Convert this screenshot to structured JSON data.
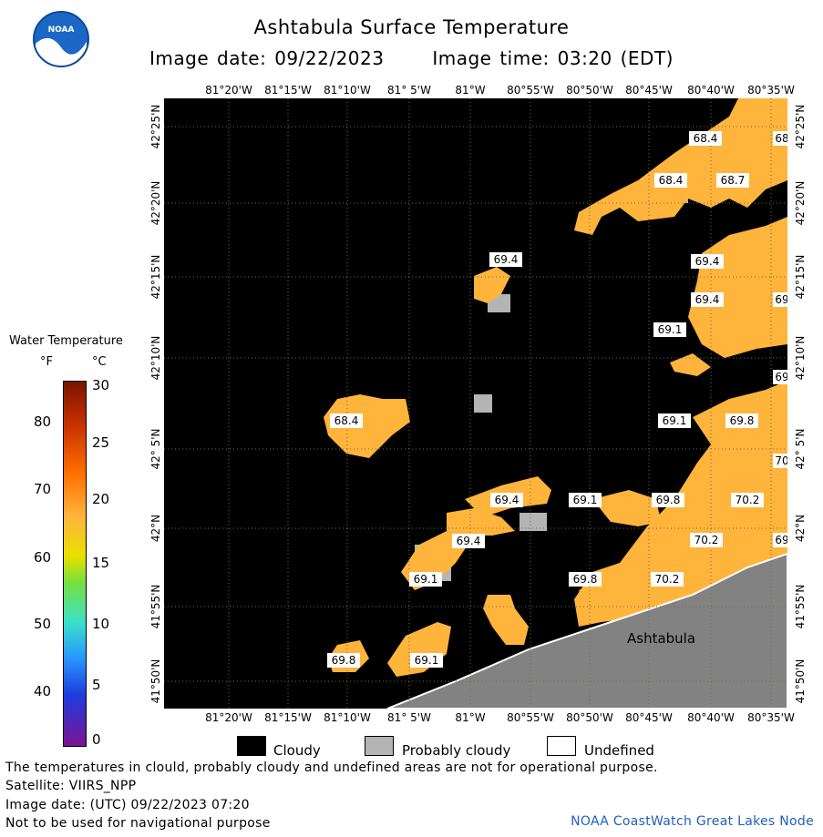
{
  "header": {
    "title": "Ashtabula Surface Temperature",
    "image_date": "Image date: 09/22/2023",
    "image_time": "Image time: 03:20 (EDT)"
  },
  "logo": {
    "icon": "noaa-logo",
    "text": "NOAA"
  },
  "legend": {
    "title": "Water Temperature",
    "unit_f": "°F",
    "unit_c": "°C",
    "f_ticks": [
      "80",
      "70",
      "60",
      "50",
      "40"
    ],
    "c_ticks": [
      "30",
      "25",
      "20",
      "15",
      "10",
      "5",
      "0"
    ]
  },
  "map": {
    "lon_labels_top": [
      "81°20'W",
      "81°15'W",
      "81°10'W",
      "81° 5'W",
      "81°W",
      "80°55'W",
      "80°50'W",
      "80°45'W",
      "80°40'W",
      "80°35'W"
    ],
    "lon_labels_bottom": [
      "81°20'W",
      "81°15'W",
      "81°10'W",
      "81° 5'W",
      "81°W",
      "80°55'W",
      "80°50'W",
      "80°45'W",
      "80°40'W",
      "80°35'W"
    ],
    "lat_labels": [
      "42°25'N",
      "42°20'N",
      "42°15'N",
      "42°10'N",
      "42° 5'N",
      "42°N",
      "41°55'N",
      "41°50'N"
    ],
    "place_label": "Ashtabula",
    "temperature_labels": [
      "68.4",
      "68.4",
      "68",
      "68.7",
      "69.4",
      "69.4",
      "69.4",
      "69",
      "69.1",
      "69",
      "68.4",
      "69.1",
      "69.8",
      "70",
      "69.4",
      "69.1",
      "69.8",
      "70.2",
      "69.4",
      "70.2",
      "69",
      "69.1",
      "69.8",
      "70.2",
      "69.8",
      "69.1"
    ],
    "colors": {
      "cloudy": "#000000",
      "probably_cloudy": "#b4b4b4",
      "land": "#828282",
      "water_warm": "#ffb43c",
      "water_hot": "#ffa028"
    }
  },
  "legend_keys": {
    "cloudy": "Cloudy",
    "probably_cloudy": "Probably cloudy",
    "undefined": "Undefined"
  },
  "footer": {
    "line1": "The temperatures in clould, probably cloudy and undefined areas are not for operational purpose.",
    "line2": "Satellite: VIIRS_NPP",
    "line3": "Image date: (UTC) 09/22/2023  07:20",
    "line4": "Not to be used for navigational purpose",
    "credit": "NOAA CoastWatch Great Lakes Node"
  }
}
